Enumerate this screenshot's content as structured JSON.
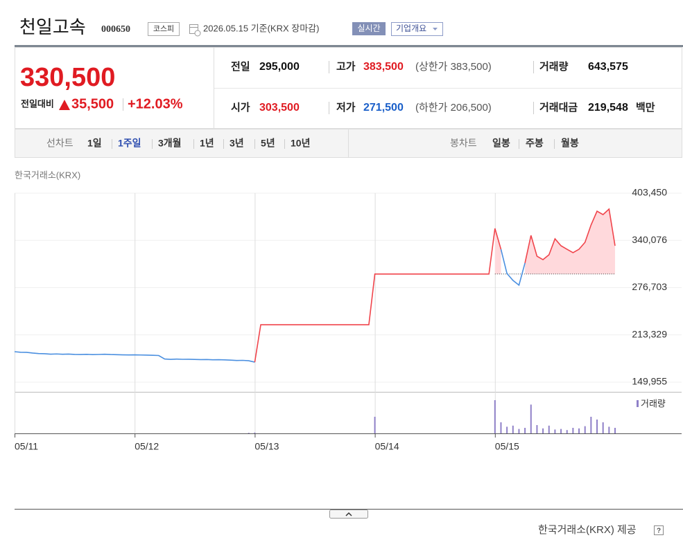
{
  "header": {
    "title": "천일고속",
    "code": "000650",
    "market": "코스피",
    "date_note": "2026.05.15 기준(KRX 장마감)",
    "realtime": "실시간",
    "company_overview": "기업개요"
  },
  "quote": {
    "price": "330,500",
    "change_label": "전일대비",
    "change": "35,500",
    "change_pct": "+12.03%",
    "items": [
      {
        "label": "전일",
        "value": "295,000"
      },
      {
        "label": "고가",
        "value": "383,500",
        "note": "(상한가 383,500)"
      },
      {
        "label": "거래량",
        "value": "643,575"
      },
      {
        "label": "시가",
        "value": "303,500"
      },
      {
        "label": "저가",
        "value": "271,500",
        "note": "(하한가 206,500)"
      },
      {
        "label": "거래대금",
        "value": "219,548",
        "unit": "백만"
      }
    ]
  },
  "tabs": {
    "line_label": "선차트",
    "line_periods": [
      "1일",
      "1주일",
      "3개월",
      "1년",
      "3년",
      "5년",
      "10년"
    ],
    "selected": 1,
    "candle_label": "봉차트",
    "candle_periods": [
      "일봉",
      "주봉",
      "월봉"
    ]
  },
  "source_top": "한국거래소(KRX)",
  "source_bottom": "한국거래소(KRX) 제공",
  "chart_data": {
    "type": "line",
    "categories": [
      "05/11",
      null,
      null,
      null,
      null,
      null,
      null,
      null,
      null,
      null,
      null,
      null,
      null,
      null,
      null,
      null,
      null,
      null,
      null,
      null,
      "05/12",
      null,
      null,
      null,
      null,
      null,
      null,
      null,
      null,
      null,
      null,
      null,
      null,
      null,
      null,
      null,
      null,
      null,
      null,
      null,
      "05/13",
      null,
      null,
      null,
      null,
      null,
      null,
      null,
      null,
      null,
      null,
      null,
      null,
      null,
      null,
      null,
      null,
      null,
      null,
      null,
      "05/14",
      null,
      null,
      null,
      null,
      null,
      null,
      null,
      null,
      null,
      null,
      null,
      null,
      null,
      null,
      null,
      null,
      null,
      null,
      null,
      "05/15",
      null,
      null,
      null,
      null,
      null,
      null,
      null,
      null,
      null,
      null,
      null,
      null,
      null,
      null,
      null,
      null,
      null,
      null,
      null,
      null
    ],
    "series": [
      {
        "color": "#4a8fe0",
        "values": [
          190800,
          190100,
          189900,
          189000,
          188300,
          188100,
          187500,
          187800,
          187400,
          187600,
          187200,
          187000,
          187300,
          186900,
          187100,
          187400,
          187000,
          186800,
          186600,
          186500,
          186600,
          186400,
          186200,
          186000,
          185700,
          181000,
          180500,
          180900,
          180600,
          180700,
          180400,
          180200,
          180300,
          180000,
          180100,
          179800,
          179500,
          179000,
          179200,
          178700,
          176800,
          null,
          null,
          null,
          null,
          null,
          null,
          null,
          null,
          null,
          null,
          null,
          null,
          null,
          null,
          null,
          null,
          null,
          null,
          null,
          null,
          null,
          null,
          null,
          null,
          null,
          null,
          null,
          null,
          null,
          null,
          null,
          null,
          null,
          null,
          null,
          null,
          null,
          null,
          null,
          null,
          328200,
          295700,
          286400,
          280100,
          309700,
          null,
          null,
          null,
          null,
          null,
          null,
          null,
          null,
          null,
          null,
          null,
          null,
          null,
          null,
          null
        ]
      },
      {
        "color": "#f0444b",
        "values": [
          null,
          null,
          null,
          null,
          null,
          null,
          null,
          null,
          null,
          null,
          null,
          null,
          null,
          null,
          null,
          null,
          null,
          null,
          null,
          null,
          null,
          null,
          null,
          null,
          null,
          null,
          null,
          null,
          null,
          null,
          null,
          null,
          null,
          null,
          null,
          null,
          null,
          null,
          null,
          null,
          176800,
          227000,
          227000,
          227000,
          227000,
          227000,
          227000,
          227000,
          227000,
          227000,
          227000,
          227000,
          227000,
          227000,
          227000,
          227000,
          227000,
          227000,
          227000,
          227000,
          295000,
          295000,
          295000,
          295000,
          295000,
          295000,
          295000,
          295000,
          295000,
          295000,
          295000,
          295000,
          295000,
          295000,
          295000,
          295000,
          295000,
          295000,
          295000,
          295000,
          356100,
          328200,
          null,
          null,
          null,
          309700,
          346800,
          318900,
          314300,
          320800,
          342200,
          332900,
          328200,
          323600,
          328200,
          337500,
          360700,
          379300,
          374700,
          382100,
          332900
        ]
      }
    ],
    "baseline": 295000,
    "area_color": "#ffd9dc",
    "ylim": [
      149955,
      403450
    ],
    "yticks": [
      {
        "value": 149955,
        "label": "149,955"
      },
      {
        "value": 213329,
        "label": "213,329"
      },
      {
        "value": 276703,
        "label": "276,703"
      },
      {
        "value": 340076,
        "label": "340,076"
      },
      {
        "value": 403450,
        "label": "403,450"
      }
    ],
    "grid": true,
    "volume": {
      "name": "거래량",
      "color": "#8f80c8",
      "values": [
        0,
        0,
        0,
        0,
        0,
        0,
        0,
        0,
        0,
        0,
        0,
        0,
        0,
        0,
        0,
        0,
        0,
        0,
        0,
        0,
        0,
        0,
        0,
        0,
        0,
        0,
        0,
        0,
        0,
        0,
        0,
        0,
        0,
        0,
        0,
        0,
        0,
        0,
        0,
        1000,
        1500,
        0,
        0,
        0,
        0,
        0,
        0,
        0,
        0,
        0,
        0,
        0,
        0,
        0,
        0,
        0,
        0,
        0,
        0,
        0,
        30000,
        0,
        0,
        0,
        0,
        0,
        0,
        0,
        0,
        0,
        0,
        0,
        0,
        0,
        0,
        0,
        0,
        0,
        0,
        0,
        60000,
        20000,
        12000,
        14000,
        8000,
        10000,
        52000,
        15000,
        9000,
        14000,
        7000,
        8000,
        6000,
        10000,
        9000,
        13000,
        30000,
        25000,
        20000,
        12000,
        10000
      ]
    }
  }
}
